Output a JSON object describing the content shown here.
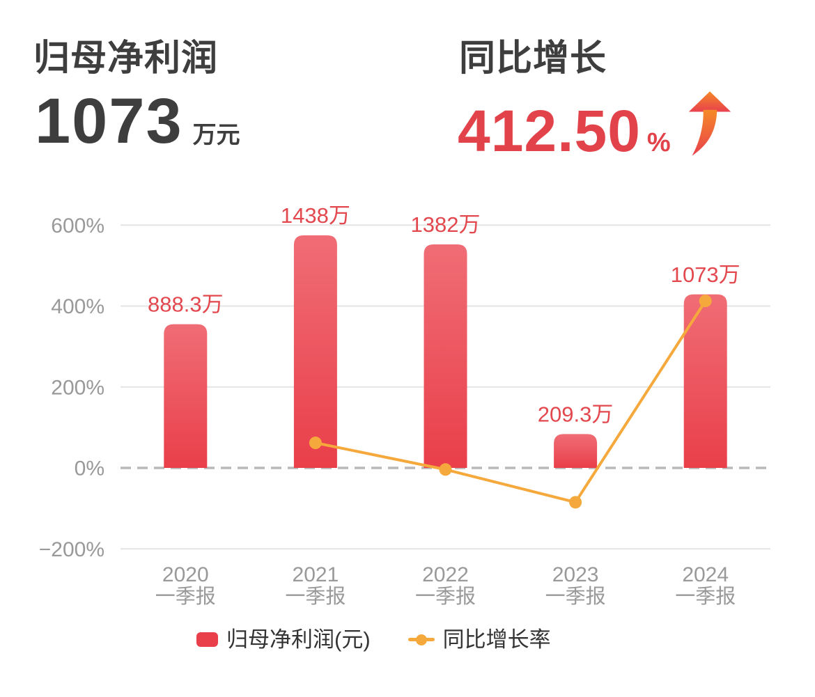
{
  "header": {
    "left": {
      "title": "归母净利润",
      "value": "1073",
      "unit": "万元"
    },
    "right": {
      "title": "同比增长",
      "value": "412.50",
      "unit": "%",
      "icon": "growth-up-arrow"
    }
  },
  "chart_data": {
    "type": "bar+line combo",
    "categories": [
      {
        "year": "2020",
        "period": "一季报"
      },
      {
        "year": "2021",
        "period": "一季报"
      },
      {
        "year": "2022",
        "period": "一季报"
      },
      {
        "year": "2023",
        "period": "一季报"
      },
      {
        "year": "2024",
        "period": "一季报"
      }
    ],
    "series": [
      {
        "name": "归母净利润(元)",
        "type": "bar",
        "unit": "万元",
        "values": [
          888.3,
          1438,
          1382,
          209.3,
          1073
        ],
        "labels": [
          "888.3万",
          "1438万",
          "1382万",
          "209.3万",
          "1073万"
        ]
      },
      {
        "name": "同比增长率",
        "type": "line",
        "unit": "%",
        "values": [
          null,
          61.9,
          -3.9,
          -84.9,
          412.5
        ]
      }
    ],
    "y_axis": {
      "unit": "%",
      "ticks": [
        600,
        400,
        200,
        0,
        -200
      ],
      "tick_labels": [
        "600%",
        "400%",
        "200%",
        "0%",
        "−200%"
      ],
      "range_pct": [
        -280,
        640
      ],
      "zero_line_style": "dashed"
    },
    "x_axis": {
      "gridlines": false
    },
    "legend": [
      {
        "label": "归母净利润(元)",
        "swatch": "bar"
      },
      {
        "label": "同比增长率",
        "swatch": "line-dot"
      }
    ],
    "legend_position": "bottom"
  },
  "colors": {
    "bar_top": "#f06d75",
    "bar_bottom": "#e93f4a",
    "value_label": "#e2484e",
    "accent_red": "#e2434a",
    "line_orange": "#f5a93c",
    "axis_text": "#999999",
    "gridline": "#e4e4e4",
    "zero_line": "#b8b8b8",
    "title_text": "#3e3e3e",
    "legend_text": "#333333",
    "arrow_top": "#f58a28",
    "arrow_bottom": "#e8404d"
  }
}
